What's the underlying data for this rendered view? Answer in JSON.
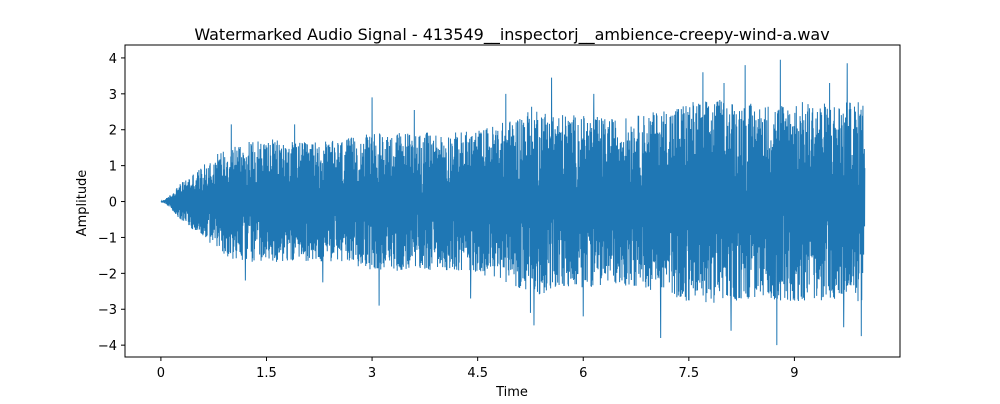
{
  "chart_data": {
    "type": "line",
    "title": "Watermarked Audio Signal - 413549__inspectorj__ambience-creepy-wind-a.wav",
    "xlabel": "Time",
    "ylabel": "Amplitude",
    "xlim": [
      -0.51,
      10.5
    ],
    "ylim": [
      -4.33,
      4.36
    ],
    "x_ticks": [
      0,
      1.5,
      3,
      4.5,
      6,
      7.5,
      9
    ],
    "x_tick_labels": [
      "0",
      "1.5",
      "3",
      "4.5",
      "6",
      "7.5",
      "9"
    ],
    "y_ticks": [
      -4,
      -3,
      -2,
      -1,
      0,
      1,
      2,
      3,
      4
    ],
    "y_tick_labels": [
      "−4",
      "−3",
      "−2",
      "−1",
      "0",
      "1",
      "2",
      "3",
      "4"
    ],
    "grid": false,
    "series": [
      {
        "color": "#1f77b4",
        "duration": 10.0,
        "envelope": {
          "time": [
            0,
            0.1,
            0.25,
            0.4,
            0.6,
            0.8,
            1.0,
            1.5,
            2.0,
            2.5,
            3.0,
            3.5,
            4.0,
            4.5,
            5.0,
            5.3,
            5.5,
            6.0,
            6.5,
            7.0,
            7.5,
            8.0,
            8.5,
            9.0,
            9.5,
            10.0
          ],
          "upper": [
            0,
            0.12,
            0.45,
            0.7,
            1.0,
            1.35,
            1.6,
            1.75,
            1.65,
            1.7,
            1.9,
            1.95,
            1.9,
            2.0,
            2.3,
            2.7,
            2.5,
            2.4,
            2.3,
            2.5,
            2.8,
            2.85,
            2.7,
            2.8,
            2.75,
            2.8
          ],
          "lower": [
            0,
            -0.12,
            -0.45,
            -0.7,
            -1.0,
            -1.35,
            -1.6,
            -1.75,
            -1.65,
            -1.7,
            -1.9,
            -1.95,
            -1.9,
            -2.0,
            -2.3,
            -2.7,
            -2.5,
            -2.4,
            -2.3,
            -2.5,
            -2.8,
            -2.85,
            -2.7,
            -2.8,
            -2.75,
            -2.8
          ]
        },
        "peaks": [
          {
            "t": 1.0,
            "a": 2.15
          },
          {
            "t": 1.2,
            "a": -2.2
          },
          {
            "t": 1.9,
            "a": 2.15
          },
          {
            "t": 2.3,
            "a": -2.25
          },
          {
            "t": 3.0,
            "a": 2.9
          },
          {
            "t": 3.1,
            "a": -2.9
          },
          {
            "t": 3.6,
            "a": 2.55
          },
          {
            "t": 4.4,
            "a": -2.7
          },
          {
            "t": 4.9,
            "a": 3.0
          },
          {
            "t": 5.3,
            "a": 3.95
          },
          {
            "t": 5.3,
            "a": -3.45
          },
          {
            "t": 5.55,
            "a": 3.45
          },
          {
            "t": 5.25,
            "a": -3.1
          },
          {
            "t": 6.15,
            "a": 3.0
          },
          {
            "t": 6.0,
            "a": -3.2
          },
          {
            "t": 7.1,
            "a": 3.2
          },
          {
            "t": 7.1,
            "a": -3.8
          },
          {
            "t": 7.7,
            "a": 3.6
          },
          {
            "t": 8.0,
            "a": 3.3
          },
          {
            "t": 8.1,
            "a": -3.6
          },
          {
            "t": 8.3,
            "a": 3.8
          },
          {
            "t": 8.8,
            "a": 3.95
          },
          {
            "t": 8.75,
            "a": -4.0
          },
          {
            "t": 9.5,
            "a": 3.3
          },
          {
            "t": 9.75,
            "a": 3.85
          },
          {
            "t": 9.7,
            "a": -3.5
          },
          {
            "t": 9.95,
            "a": 3.75
          },
          {
            "t": 9.95,
            "a": -3.75
          }
        ]
      }
    ]
  }
}
